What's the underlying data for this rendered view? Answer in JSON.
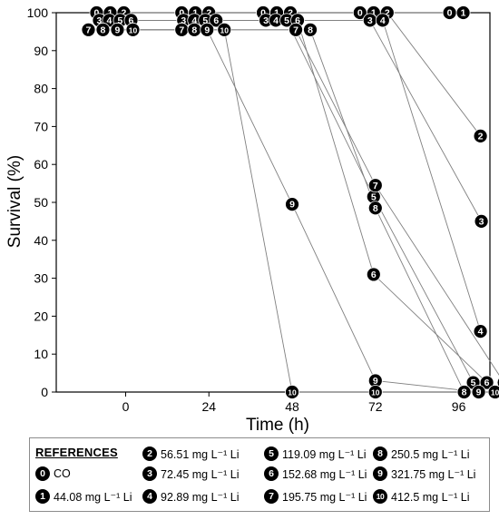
{
  "chart_data": {
    "type": "line",
    "xlabel": "Time (h)",
    "ylabel": "Survival (%)",
    "x_ticks": [
      "0",
      "24",
      "48",
      "72",
      "96"
    ],
    "y_ticks": [
      "0",
      "10",
      "20",
      "30",
      "40",
      "50",
      "60",
      "70",
      "80",
      "90",
      "100"
    ],
    "xlim": [
      -20,
      105
    ],
    "ylim": [
      0,
      100
    ],
    "grid": false,
    "series": [
      {
        "name": "0",
        "points": [
          [
            0,
            100
          ],
          [
            24,
            100
          ],
          [
            48,
            100
          ],
          [
            72,
            100
          ],
          [
            96,
            100
          ]
        ]
      },
      {
        "name": "1",
        "points": [
          [
            0,
            100
          ],
          [
            24,
            100
          ],
          [
            48,
            100
          ],
          [
            72,
            100
          ],
          [
            96,
            100
          ]
        ]
      },
      {
        "name": "2",
        "points": [
          [
            0,
            100
          ],
          [
            24,
            100
          ],
          [
            48,
            100
          ],
          [
            72,
            100
          ],
          [
            96,
            67.5
          ]
        ]
      },
      {
        "name": "3",
        "points": [
          [
            0,
            98
          ],
          [
            24,
            98
          ],
          [
            48,
            98
          ],
          [
            72,
            98
          ],
          [
            96,
            45
          ]
        ]
      },
      {
        "name": "4",
        "points": [
          [
            0,
            98
          ],
          [
            24,
            98
          ],
          [
            48,
            98
          ],
          [
            72,
            98
          ],
          [
            96,
            16
          ]
        ]
      },
      {
        "name": "5",
        "points": [
          [
            0,
            98
          ],
          [
            24,
            98
          ],
          [
            48,
            98
          ],
          [
            72,
            51.5
          ],
          [
            96,
            2.5
          ]
        ]
      },
      {
        "name": "6",
        "points": [
          [
            0,
            98
          ],
          [
            24,
            98
          ],
          [
            48,
            98
          ],
          [
            72,
            31
          ],
          [
            96,
            2.5
          ]
        ]
      },
      {
        "name": "7",
        "points": [
          [
            0,
            95.5
          ],
          [
            24,
            95.5
          ],
          [
            48,
            95.5
          ],
          [
            72,
            54.5
          ],
          [
            96,
            2.5
          ]
        ]
      },
      {
        "name": "8",
        "points": [
          [
            0,
            95.5
          ],
          [
            24,
            95.5
          ],
          [
            48,
            95.5
          ],
          [
            72,
            48.5
          ],
          [
            96,
            0
          ]
        ]
      },
      {
        "name": "9",
        "points": [
          [
            0,
            95.5
          ],
          [
            24,
            95.5
          ],
          [
            48,
            49.5
          ],
          [
            72,
            3
          ],
          [
            96,
            0
          ]
        ]
      },
      {
        "name": "10",
        "points": [
          [
            0,
            95.5
          ],
          [
            24,
            95.5
          ],
          [
            48,
            0
          ],
          [
            72,
            0
          ],
          [
            96,
            0
          ]
        ]
      }
    ]
  },
  "legend": {
    "title": "REFERENCES",
    "items": [
      {
        "marker": "0",
        "label": "CO"
      },
      {
        "marker": "1",
        "label": "44.08 mg L⁻¹ Li"
      },
      {
        "marker": "2",
        "label": "56.51 mg L⁻¹ Li"
      },
      {
        "marker": "3",
        "label": "72.45 mg L⁻¹ Li"
      },
      {
        "marker": "4",
        "label": "92.89 mg L⁻¹ Li"
      },
      {
        "marker": "5",
        "label": "119.09 mg L⁻¹ Li"
      },
      {
        "marker": "6",
        "label": "152.68 mg L⁻¹ Li"
      },
      {
        "marker": "7",
        "label": "195.75 mg L⁻¹ Li"
      },
      {
        "marker": "8",
        "label": "250.5 mg L⁻¹ Li"
      },
      {
        "marker": "9",
        "label": "321.75 mg L⁻¹ Li"
      },
      {
        "marker": "10",
        "label": "412.5 mg L⁻¹ Li"
      }
    ]
  },
  "colors": {
    "marker_fill": "#000000",
    "marker_text": "#ffffff",
    "line": "#7f7f7f",
    "axis": "#000000"
  }
}
